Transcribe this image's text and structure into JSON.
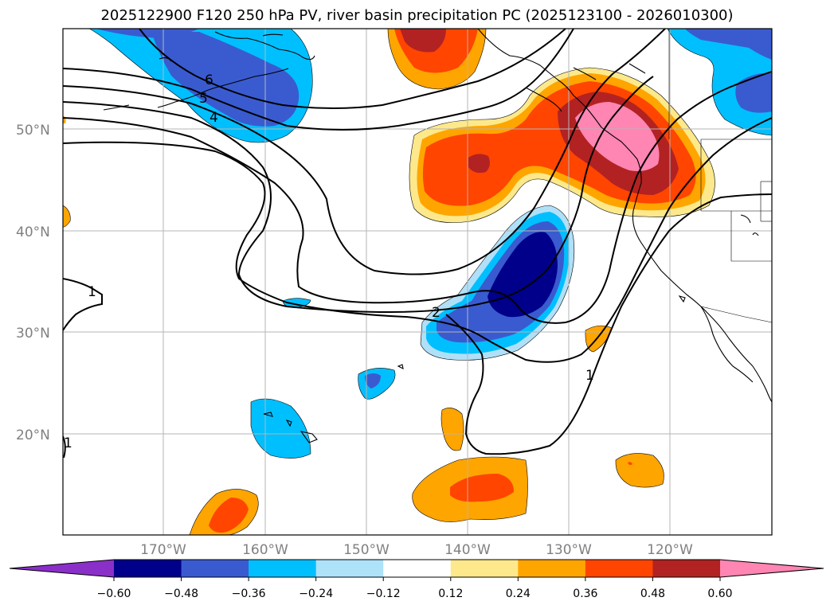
{
  "title": "2025122900 F120 250 hPa PV, river basin precipitation PC (2025123100 - 2026010300)",
  "lat_ticks": [
    "50°N",
    "40°N",
    "30°N",
    "20°N"
  ],
  "lon_ticks": [
    "170°W",
    "160°W",
    "150°W",
    "140°W",
    "130°W",
    "120°W"
  ],
  "contour_labels": [
    "6",
    "5",
    "4",
    "2",
    "1",
    "1",
    "1"
  ],
  "colorbar": {
    "ticks": [
      "−0.60",
      "−0.48",
      "−0.36",
      "−0.24",
      "−0.12",
      "0.12",
      "0.24",
      "0.36",
      "0.48",
      "0.60"
    ],
    "colors": [
      "#8b2fc9",
      "#00008b",
      "#3a5bcf",
      "#00bfff",
      "#aee2f8",
      "#ffffff",
      "#fde98b",
      "#ffa500",
      "#ff4500",
      "#b22222",
      "#ff85b3"
    ]
  },
  "colors": {
    "purple": "#9932cc",
    "navy": "#00008b",
    "royal": "#3a5bcf",
    "sky": "#00bfff",
    "pale_blue": "#b0e0f8",
    "pale_yellow": "#fde98b",
    "orange": "#ffa500",
    "red_orange": "#ff4500",
    "firebrick": "#b22222",
    "pink": "#ff85b3"
  }
}
